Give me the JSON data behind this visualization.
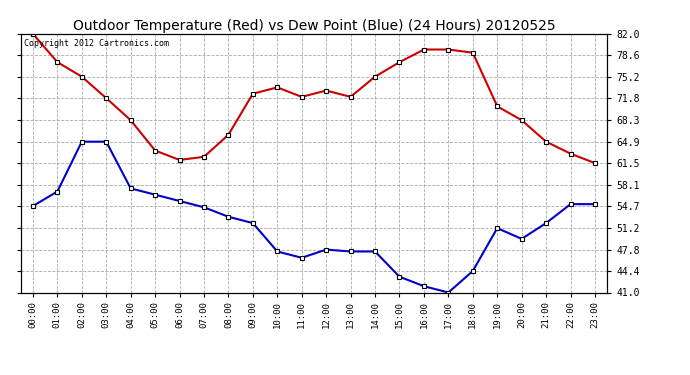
{
  "title": "Outdoor Temperature (Red) vs Dew Point (Blue) (24 Hours) 20120525",
  "copyright_text": "Copyright 2012 Cartronics.com",
  "x_labels": [
    "00:00",
    "01:00",
    "02:00",
    "03:00",
    "04:00",
    "05:00",
    "06:00",
    "07:00",
    "08:00",
    "09:00",
    "10:00",
    "11:00",
    "12:00",
    "13:00",
    "14:00",
    "15:00",
    "16:00",
    "17:00",
    "18:00",
    "19:00",
    "20:00",
    "21:00",
    "22:00",
    "23:00"
  ],
  "temp_red": [
    82.0,
    77.5,
    75.2,
    71.8,
    68.3,
    63.5,
    62.0,
    62.5,
    66.0,
    72.5,
    73.5,
    72.0,
    73.0,
    72.0,
    75.2,
    77.5,
    79.5,
    79.5,
    79.0,
    70.5,
    68.3,
    64.9,
    63.0,
    61.5
  ],
  "dew_blue": [
    54.7,
    57.0,
    64.9,
    64.9,
    57.5,
    56.5,
    55.5,
    54.5,
    53.0,
    52.0,
    47.5,
    46.5,
    47.8,
    47.5,
    47.5,
    43.5,
    42.0,
    41.0,
    44.4,
    51.2,
    49.5,
    52.0,
    55.0,
    55.0
  ],
  "y_ticks": [
    41.0,
    44.4,
    47.8,
    51.2,
    54.7,
    58.1,
    61.5,
    64.9,
    68.3,
    71.8,
    75.2,
    78.6,
    82.0
  ],
  "ylim": [
    41.0,
    82.0
  ],
  "bg_color": "#ffffff",
  "plot_bg_color": "#ffffff",
  "grid_color": "#aaaaaa",
  "red_color": "#cc0000",
  "blue_color": "#0000cc",
  "title_fontsize": 10,
  "marker": "s",
  "marker_size": 3.5,
  "marker_face": "white",
  "marker_edge": "black",
  "marker_edge_width": 0.8,
  "line_width": 1.5
}
